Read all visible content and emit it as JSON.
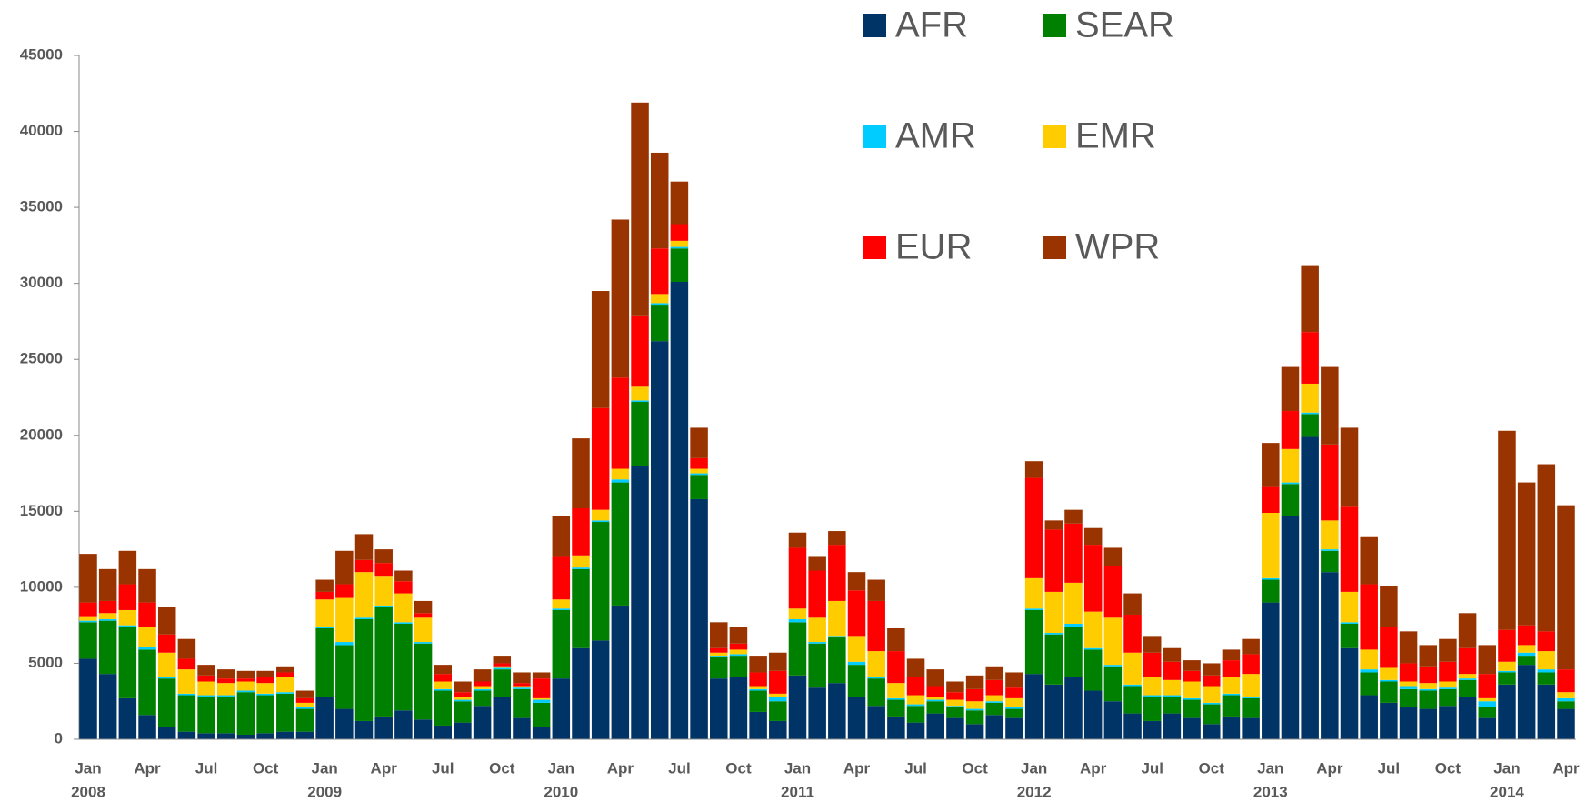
{
  "chart_data": {
    "type": "bar",
    "stacked": true,
    "categories": [
      "Jan",
      null,
      null,
      "Apr",
      null,
      null,
      "Jul",
      null,
      null,
      "Oct",
      null,
      null,
      "Jan",
      null,
      null,
      "Apr",
      null,
      null,
      "Jul",
      null,
      null,
      "Oct",
      null,
      null,
      "Jan",
      null,
      null,
      "Apr",
      null,
      null,
      "Jul",
      null,
      null,
      "Oct",
      null,
      null,
      "Jan",
      null,
      null,
      "Apr",
      null,
      null,
      "Jul",
      null,
      null,
      "Oct",
      null,
      null,
      "Jan",
      null,
      null,
      "Apr",
      null,
      null,
      "Jul",
      null,
      null,
      "Oct",
      null,
      null,
      "Jan",
      null,
      null,
      "Apr",
      null,
      null,
      "Jul",
      null,
      null,
      "Oct",
      null,
      null,
      "Jan",
      null,
      null,
      "Apr"
    ],
    "category_years": [
      "2008",
      null,
      null,
      null,
      null,
      null,
      null,
      null,
      null,
      null,
      null,
      null,
      "2009",
      null,
      null,
      null,
      null,
      null,
      null,
      null,
      null,
      null,
      null,
      null,
      "2010",
      null,
      null,
      null,
      null,
      null,
      null,
      null,
      null,
      null,
      null,
      null,
      "2011",
      null,
      null,
      null,
      null,
      null,
      null,
      null,
      null,
      null,
      null,
      null,
      "2012",
      null,
      null,
      null,
      null,
      null,
      null,
      null,
      null,
      null,
      null,
      null,
      "2013",
      null,
      null,
      null,
      null,
      null,
      null,
      null,
      null,
      null,
      null,
      null,
      "2014",
      null,
      null,
      null
    ],
    "series": [
      {
        "name": "AFR",
        "color": "#003366",
        "values": [
          5300,
          4300,
          2700,
          1600,
          800,
          500,
          400,
          400,
          300,
          400,
          500,
          500,
          2800,
          2000,
          1200,
          1500,
          1900,
          1300,
          900,
          1100,
          2200,
          2800,
          1400,
          800,
          4000,
          6000,
          6500,
          8800,
          18000,
          26200,
          30100,
          15800,
          4000,
          4100,
          1800,
          1200,
          4200,
          3400,
          3700,
          2800,
          2200,
          1500,
          1100,
          1700,
          1400,
          1000,
          1600,
          1400,
          4300,
          3600,
          4100,
          3200,
          2500,
          1700,
          1200,
          1700,
          1400,
          1000,
          1500,
          1400,
          9000,
          14700,
          19900,
          11000,
          6000,
          2900,
          2400,
          2100,
          2000,
          2200,
          2800,
          1400,
          3600,
          4900,
          3600,
          2000
        ]
      },
      {
        "name": "SEAR",
        "color": "#008000",
        "values": [
          2400,
          3500,
          4700,
          4300,
          3200,
          2400,
          2400,
          2400,
          2800,
          2500,
          2500,
          1500,
          4500,
          4200,
          6700,
          7200,
          5700,
          5000,
          2300,
          1400,
          1000,
          1800,
          1900,
          1600,
          4500,
          5200,
          7800,
          8100,
          4200,
          2400,
          2200,
          1600,
          1400,
          1400,
          1400,
          1300,
          3500,
          2900,
          3000,
          2100,
          1800,
          1100,
          1100,
          800,
          700,
          900,
          800,
          600,
          4200,
          3300,
          3300,
          2700,
          2300,
          1800,
          1600,
          1100,
          1200,
          1300,
          1400,
          1300,
          1500,
          2100,
          1500,
          1400,
          1600,
          1500,
          1400,
          1200,
          1200,
          1100,
          1100,
          700,
          800,
          600,
          800,
          500
        ]
      },
      {
        "name": "AMR",
        "color": "#00ccff",
        "values": [
          100,
          100,
          100,
          200,
          100,
          100,
          100,
          100,
          100,
          100,
          100,
          100,
          100,
          200,
          100,
          100,
          100,
          100,
          100,
          100,
          100,
          100,
          100,
          200,
          100,
          100,
          100,
          200,
          100,
          100,
          100,
          100,
          100,
          100,
          100,
          300,
          200,
          100,
          100,
          200,
          100,
          100,
          100,
          100,
          100,
          100,
          100,
          100,
          100,
          100,
          200,
          100,
          100,
          100,
          100,
          100,
          100,
          100,
          100,
          100,
          100,
          100,
          100,
          100,
          100,
          200,
          100,
          200,
          100,
          100,
          100,
          400,
          100,
          200,
          200,
          200
        ]
      },
      {
        "name": "EMR",
        "color": "#ffcc00",
        "values": [
          300,
          400,
          1000,
          1300,
          1600,
          1600,
          900,
          800,
          600,
          700,
          1000,
          300,
          1800,
          2900,
          3000,
          1900,
          1900,
          1600,
          500,
          200,
          200,
          100,
          100,
          100,
          600,
          800,
          700,
          700,
          900,
          600,
          400,
          300,
          200,
          300,
          200,
          200,
          700,
          1600,
          2300,
          1700,
          1700,
          1000,
          600,
          200,
          400,
          500,
          400,
          600,
          2000,
          2700,
          2700,
          2400,
          3100,
          2100,
          1200,
          1000,
          1100,
          1100,
          1100,
          1500,
          4300,
          2200,
          1900,
          1900,
          2000,
          1300,
          800,
          300,
          400,
          400,
          300,
          200,
          600,
          500,
          1200,
          400
        ]
      },
      {
        "name": "EUR",
        "color": "#ff0000",
        "values": [
          900,
          800,
          1700,
          1600,
          1200,
          700,
          400,
          300,
          200,
          400,
          300,
          300,
          500,
          900,
          800,
          900,
          800,
          300,
          500,
          300,
          300,
          200,
          200,
          1300,
          2800,
          3100,
          6700,
          6000,
          4700,
          3000,
          1100,
          700,
          300,
          400,
          900,
          1500,
          4000,
          3100,
          3700,
          3000,
          3300,
          2100,
          1200,
          700,
          500,
          800,
          1000,
          700,
          6600,
          4100,
          3900,
          4400,
          3400,
          2500,
          1600,
          1200,
          700,
          700,
          1100,
          1300,
          1700,
          2500,
          3400,
          5000,
          5600,
          4300,
          2700,
          1200,
          1100,
          1300,
          1700,
          1600,
          2100,
          1300,
          1300,
          1500
        ]
      },
      {
        "name": "WPR",
        "color": "#993300",
        "values": [
          3200,
          2100,
          2200,
          2200,
          1800,
          1300,
          700,
          600,
          500,
          400,
          400,
          500,
          800,
          2200,
          1700,
          900,
          700,
          800,
          600,
          700,
          800,
          500,
          700,
          400,
          2700,
          4600,
          7700,
          10400,
          14000,
          6300,
          2800,
          2000,
          1700,
          1100,
          1100,
          1200,
          1000,
          900,
          900,
          1200,
          1400,
          1500,
          1200,
          1100,
          700,
          900,
          900,
          1000,
          1100,
          600,
          900,
          1100,
          1200,
          1400,
          1100,
          900,
          700,
          800,
          700,
          1000,
          2900,
          2900,
          4400,
          5100,
          5200,
          3100,
          2700,
          2100,
          1400,
          1500,
          2300,
          1900,
          13100,
          9400,
          11000,
          10800
        ]
      }
    ],
    "ylim": [
      0,
      45000
    ],
    "yticks": [
      0,
      5000,
      10000,
      15000,
      20000,
      25000,
      30000,
      35000,
      40000,
      45000
    ],
    "grid": false,
    "legend": "top"
  }
}
